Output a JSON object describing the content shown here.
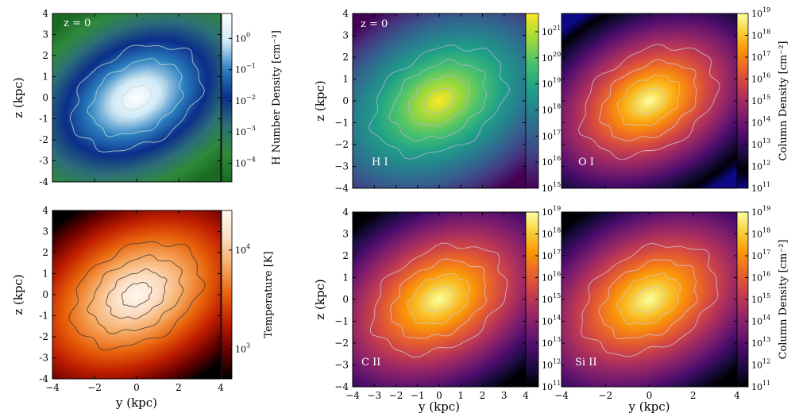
{
  "chart_data": [
    {
      "type": "heatmap",
      "panel": "gas-density",
      "annotation": "z = 0",
      "xlim": [
        -4,
        4
      ],
      "ylim": [
        -4,
        4
      ],
      "x_ticks": [
        "",
        "",
        "",
        "",
        ""
      ],
      "y_ticks": [
        "4",
        "3",
        "2",
        "1",
        "0",
        "-1",
        "-2",
        "-3",
        "-4"
      ],
      "xlabel": "",
      "ylabel": "z  (kpc)",
      "colorbar": {
        "label": "H Number Density  [cm⁻³]",
        "scale": "log",
        "range": [
          -4.6,
          0.8
        ],
        "ticks": [
          {
            "v": 0,
            "base": "10",
            "exp": "0"
          },
          {
            "v": -1,
            "base": "10",
            "exp": "−1"
          },
          {
            "v": -2,
            "base": "10",
            "exp": "−2"
          },
          {
            "v": -3,
            "base": "10",
            "exp": "−3"
          },
          {
            "v": -4,
            "base": "10",
            "exp": "−4"
          }
        ],
        "colors": [
          "#1a6a24",
          "#2e8a3a",
          "#2d6f78",
          "#0b2e8a",
          "#2b7fbf",
          "#cfe9f7",
          "#ffffff"
        ]
      },
      "contour_color": "#c9d8c9"
    },
    {
      "type": "heatmap",
      "panel": "temperature",
      "annotation": "",
      "xlim": [
        -4,
        4
      ],
      "ylim": [
        -4,
        4
      ],
      "x_ticks": [
        "−4",
        "−2",
        "0",
        "2",
        "4"
      ],
      "y_ticks": [
        "4",
        "3",
        "2",
        "1",
        "0",
        "-1",
        "-2",
        "-3",
        "-4"
      ],
      "xlabel": "y  (kpc)",
      "ylabel": "z  (kpc)",
      "colorbar": {
        "label": "Temperature  [K]",
        "scale": "log",
        "range": [
          2.7,
          4.4
        ],
        "ticks": [
          {
            "v": 4,
            "base": "10",
            "exp": "4"
          },
          {
            "v": 3,
            "base": "10",
            "exp": "3"
          }
        ],
        "colors": [
          "#000000",
          "#6b0000",
          "#c01e00",
          "#e8620a",
          "#f6a860",
          "#fbdcc0",
          "#fff8f2"
        ]
      },
      "contour_color": "#3a3a3a"
    },
    {
      "type": "heatmap",
      "panel": "column-density-hi",
      "annotation": "z = 0",
      "ion_label": "H I",
      "xlim": [
        -4,
        4
      ],
      "ylim": [
        -4,
        4
      ],
      "x_ticks": [
        "",
        "",
        "",
        "",
        "",
        "",
        "",
        "",
        ""
      ],
      "y_ticks": [
        "4",
        "3",
        "2",
        "1",
        "0",
        "−1",
        "−2",
        "−3",
        "−4"
      ],
      "xlabel": "",
      "ylabel": "z  (kpc)",
      "colorbar": {
        "label": "",
        "scale": "log",
        "range": [
          15,
          21.7
        ],
        "ticks": [
          {
            "v": 21,
            "base": "10",
            "exp": "21"
          },
          {
            "v": 20,
            "base": "10",
            "exp": "20"
          },
          {
            "v": 19,
            "base": "10",
            "exp": "19"
          },
          {
            "v": 18,
            "base": "10",
            "exp": "18"
          },
          {
            "v": 17,
            "base": "10",
            "exp": "17"
          },
          {
            "v": 16,
            "base": "10",
            "exp": "16"
          },
          {
            "v": 15,
            "base": "10",
            "exp": "15"
          }
        ],
        "colors": [
          "#440154",
          "#46327e",
          "#365c8d",
          "#277f8e",
          "#1fa187",
          "#4ac16d",
          "#a0da39",
          "#fde725"
        ]
      },
      "contour_color": "#b9b3d6"
    },
    {
      "type": "heatmap",
      "panel": "column-density-oi",
      "annotation": "",
      "ion_label": "O I",
      "xlim": [
        -4,
        4
      ],
      "ylim": [
        -4,
        4
      ],
      "x_ticks": [
        "",
        "",
        "",
        "",
        ""
      ],
      "y_ticks": [],
      "xlabel": "",
      "ylabel": "",
      "colorbar": {
        "label": "Column Density  [cm⁻²]",
        "scale": "log",
        "range": [
          11,
          19
        ],
        "ticks": [
          {
            "v": 19,
            "base": "10",
            "exp": "19"
          },
          {
            "v": 18,
            "base": "10",
            "exp": "18"
          },
          {
            "v": 17,
            "base": "10",
            "exp": "17"
          },
          {
            "v": 16,
            "base": "10",
            "exp": "16"
          },
          {
            "v": 15,
            "base": "10",
            "exp": "15"
          },
          {
            "v": 14,
            "base": "10",
            "exp": "14"
          },
          {
            "v": 13,
            "base": "10",
            "exp": "13"
          },
          {
            "v": 12,
            "base": "10",
            "exp": "12"
          },
          {
            "v": 11,
            "base": "10",
            "exp": "11"
          }
        ],
        "colors": [
          "#0d0887",
          "#000004",
          "#1b0c41",
          "#4a0c6b",
          "#781c6d",
          "#a52c60",
          "#cf4446",
          "#ed6925",
          "#fb9b06",
          "#f7d13d",
          "#fcffa4"
        ]
      },
      "contour_color": "#cfc6dc"
    },
    {
      "type": "heatmap",
      "panel": "column-density-cii",
      "annotation": "",
      "ion_label": "C II",
      "xlim": [
        -4,
        4
      ],
      "ylim": [
        -4,
        4
      ],
      "x_ticks": [
        "−4",
        "−3",
        "−2",
        "−1",
        "0",
        "1",
        "2",
        "3",
        "4"
      ],
      "y_ticks": [
        "4",
        "3",
        "2",
        "1",
        "0",
        "−1",
        "−2",
        "−3",
        "−4"
      ],
      "xlabel": "y  (kpc)",
      "ylabel": "z  (kpc)",
      "colorbar": {
        "label": "",
        "scale": "log",
        "range": [
          11,
          19
        ],
        "ticks": [
          {
            "v": 19,
            "base": "10",
            "exp": "19"
          },
          {
            "v": 18,
            "base": "10",
            "exp": "18"
          },
          {
            "v": 17,
            "base": "10",
            "exp": "17"
          },
          {
            "v": 16,
            "base": "10",
            "exp": "16"
          },
          {
            "v": 15,
            "base": "10",
            "exp": "15"
          },
          {
            "v": 14,
            "base": "10",
            "exp": "14"
          },
          {
            "v": 13,
            "base": "10",
            "exp": "13"
          },
          {
            "v": 12,
            "base": "10",
            "exp": "12"
          },
          {
            "v": 11,
            "base": "10",
            "exp": "11"
          }
        ],
        "colors": [
          "#000004",
          "#1b0c41",
          "#4a0c6b",
          "#781c6d",
          "#a52c60",
          "#cf4446",
          "#ed6925",
          "#fb9b06",
          "#f7d13d",
          "#fcffa4"
        ]
      },
      "contour_color": "#cfc6dc"
    },
    {
      "type": "heatmap",
      "panel": "column-density-siii",
      "annotation": "",
      "ion_label": "Si II",
      "xlim": [
        -4,
        4
      ],
      "ylim": [
        -4,
        4
      ],
      "x_ticks": [
        "−4",
        "−2",
        "0",
        "2",
        "4"
      ],
      "y_ticks": [],
      "xlabel": "y  (kpc)",
      "ylabel": "",
      "colorbar": {
        "label": "Column Density  [cm⁻²]",
        "scale": "log",
        "range": [
          11,
          19
        ],
        "ticks": [
          {
            "v": 19,
            "base": "10",
            "exp": "19"
          },
          {
            "v": 18,
            "base": "10",
            "exp": "18"
          },
          {
            "v": 17,
            "base": "10",
            "exp": "17"
          },
          {
            "v": 16,
            "base": "10",
            "exp": "16"
          },
          {
            "v": 15,
            "base": "10",
            "exp": "15"
          },
          {
            "v": 14,
            "base": "10",
            "exp": "14"
          },
          {
            "v": 13,
            "base": "10",
            "exp": "13"
          },
          {
            "v": 12,
            "base": "10",
            "exp": "12"
          },
          {
            "v": 11,
            "base": "10",
            "exp": "11"
          }
        ],
        "colors": [
          "#000004",
          "#1b0c41",
          "#4a0c6b",
          "#781c6d",
          "#a52c60",
          "#cf4446",
          "#ed6925",
          "#fb9b06",
          "#f7d13d",
          "#fcffa4"
        ]
      },
      "contour_color": "#cfc6dc"
    }
  ]
}
